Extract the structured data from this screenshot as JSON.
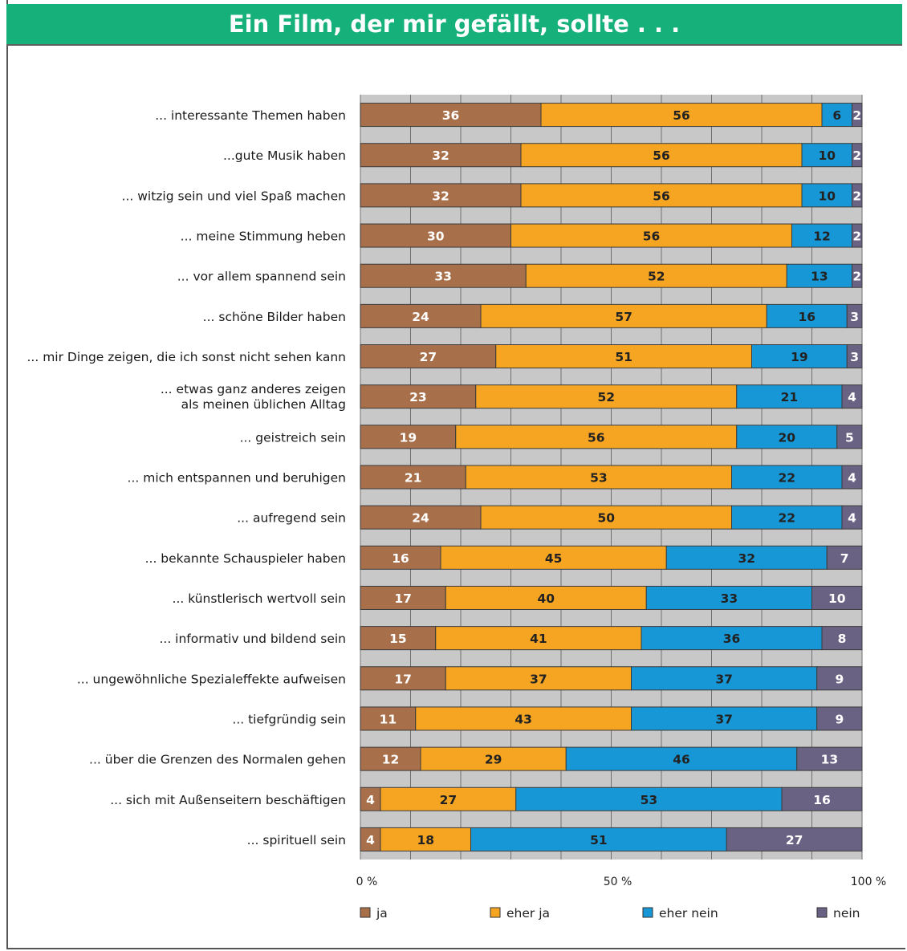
{
  "chart_data": {
    "type": "bar",
    "orientation": "horizontal",
    "stacked": true,
    "title": "Ein Film, der mir gefällt, sollte . . .",
    "categories": [
      [
        "... interessante Themen haben"
      ],
      [
        "...gute Musik haben"
      ],
      [
        "... witzig sein und viel Spaß machen"
      ],
      [
        "... meine Stimmung heben"
      ],
      [
        "... vor allem spannend sein"
      ],
      [
        "... schöne Bilder haben"
      ],
      [
        "... mir Dinge zeigen, die ich sonst nicht sehen kann"
      ],
      [
        "... etwas ganz anderes zeigen",
        "als meinen üblichen Alltag"
      ],
      [
        "... geistreich sein"
      ],
      [
        "... mich entspannen und beruhigen"
      ],
      [
        "... aufregend sein"
      ],
      [
        "... bekannte Schauspieler haben"
      ],
      [
        "... künstlerisch wertvoll sein"
      ],
      [
        "... informativ und bildend sein"
      ],
      [
        "... ungewöhnliche Spezialeffekte aufweisen"
      ],
      [
        "... tiefgründig sein"
      ],
      [
        "... über die Grenzen des Normalen gehen"
      ],
      [
        "... sich mit Außenseitern beschäftigen"
      ],
      [
        "... spirituell sein"
      ]
    ],
    "series": [
      {
        "name": "ja",
        "color": "#a8704a",
        "text_color": "#ffffff",
        "values": [
          36,
          32,
          32,
          30,
          33,
          24,
          27,
          23,
          19,
          21,
          24,
          16,
          17,
          15,
          17,
          11,
          12,
          4,
          4
        ]
      },
      {
        "name": "eher ja",
        "color": "#f6a522",
        "text_color": "#222222",
        "values": [
          56,
          56,
          56,
          56,
          52,
          57,
          51,
          52,
          56,
          53,
          50,
          45,
          40,
          41,
          37,
          43,
          29,
          27,
          18
        ]
      },
      {
        "name": "eher nein",
        "color": "#1797d6",
        "text_color": "#222222",
        "values": [
          6,
          10,
          10,
          12,
          13,
          16,
          19,
          21,
          20,
          22,
          22,
          32,
          33,
          36,
          37,
          37,
          46,
          53,
          51
        ]
      },
      {
        "name": "nein",
        "color": "#6a6283",
        "text_color": "#ffffff",
        "values": [
          2,
          2,
          2,
          2,
          2,
          3,
          3,
          4,
          5,
          4,
          4,
          7,
          10,
          8,
          9,
          9,
          13,
          16,
          27
        ]
      }
    ],
    "xlim": [
      0,
      100
    ],
    "xticks": [
      {
        "value": 0,
        "label": "0 %"
      },
      {
        "value": 50,
        "label": "50 %"
      },
      {
        "value": 100,
        "label": "100 %"
      }
    ],
    "grid": true,
    "legend_position": "bottom",
    "colors": {
      "plot_background": "#c8c8c8",
      "gridline": "#6f6f6f"
    }
  }
}
